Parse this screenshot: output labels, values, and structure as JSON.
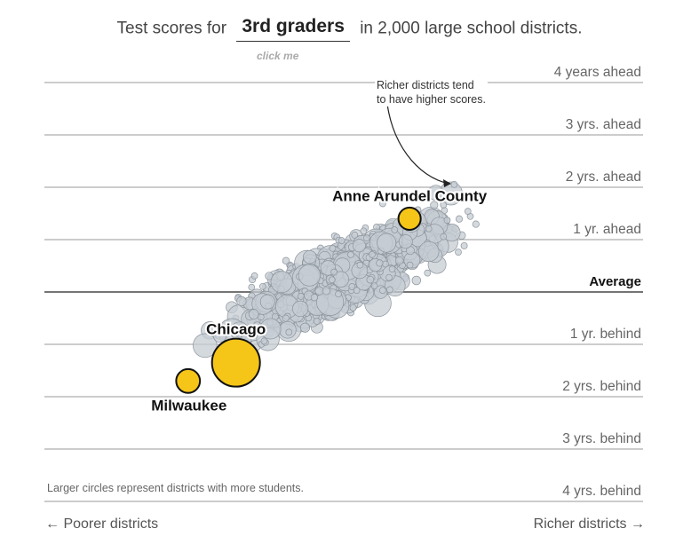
{
  "header": {
    "prefix": "Test scores for",
    "grade": "3rd graders",
    "suffix": "in 2,000 large school districts.",
    "hint": "click me"
  },
  "annotation": {
    "line1": "Richer districts tend",
    "line2": "to have higher scores."
  },
  "note": "Larger circles represent districts with more students.",
  "x_axis": {
    "left": "← Poorer districts",
    "right": "Richer districts →"
  },
  "colors": {
    "dot_fill": "#c5ccd3",
    "dot_stroke": "#8c949c",
    "highlight_fill": "#f5c518",
    "highlight_stroke": "#111111",
    "grid": "#999999",
    "average_line": "#222222"
  },
  "chart_data": {
    "type": "scatter",
    "ylim": [
      -4,
      4
    ],
    "y_ticks": [
      {
        "value": 4,
        "label": "4 years ahead"
      },
      {
        "value": 3,
        "label": "3 yrs. ahead"
      },
      {
        "value": 2,
        "label": "2 yrs. ahead"
      },
      {
        "value": 1,
        "label": "1 yr. ahead"
      },
      {
        "value": 0,
        "label": "Average"
      },
      {
        "value": -1,
        "label": "1 yr. behind"
      },
      {
        "value": -2,
        "label": "2 yrs. behind"
      },
      {
        "value": -3,
        "label": "3 yrs. behind"
      },
      {
        "value": -4,
        "label": "4 yrs. behind"
      }
    ],
    "highlighted": [
      {
        "name": "Anne Arundel County",
        "income": 0.61,
        "score": 1.4,
        "size": 0.15
      },
      {
        "name": "Chicago",
        "income": 0.32,
        "score": -1.35,
        "size": 1.0
      },
      {
        "name": "Milwaukee",
        "income": 0.24,
        "score": -1.7,
        "size": 0.2
      }
    ],
    "bubble_notes": "Background districts are plotted as many gray bubbles along an upward trend from poorer to richer."
  }
}
